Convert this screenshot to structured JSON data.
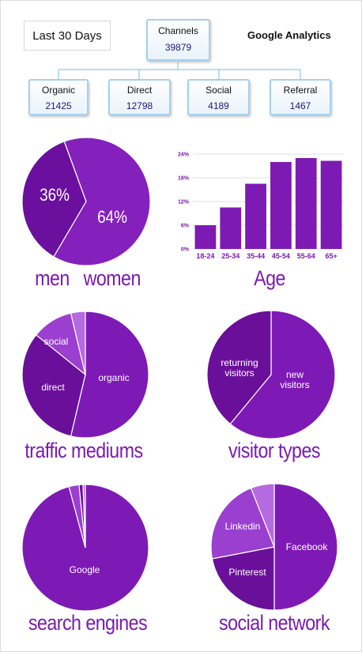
{
  "header": {
    "date_range": "Last 30 Days",
    "brand": "Google Analytics"
  },
  "channels": {
    "root": {
      "name": "Channels",
      "value": "39879"
    },
    "items": [
      {
        "name": "Organic",
        "value": "21425"
      },
      {
        "name": "Direct",
        "value": "12798"
      },
      {
        "name": "Social",
        "value": "4189"
      },
      {
        "name": "Referral",
        "value": "1467"
      }
    ]
  },
  "colors": {
    "dark": "#6a0f9c",
    "mid": "#7d1ab3",
    "light": "#9a3fd0",
    "lighter": "#b66ae0",
    "line": "#a6d0ec"
  },
  "chart_data": [
    {
      "type": "pie",
      "caption": "men   women",
      "slices": [
        {
          "label": "36%",
          "value": 36
        },
        {
          "label": "64%",
          "value": 64
        }
      ]
    },
    {
      "type": "bar",
      "caption": "Age",
      "categories": [
        "18-24",
        "25-34",
        "35-44",
        "45-54",
        "55-64",
        "65+"
      ],
      "values": [
        6.0,
        10.5,
        16.5,
        22.0,
        23.0,
        22.3
      ],
      "ylim": [
        0,
        24
      ],
      "yticks": [
        0,
        6,
        12,
        18,
        24
      ],
      "ytick_labels": [
        "0%",
        "6%",
        "12%",
        "18%",
        "24%"
      ]
    },
    {
      "type": "pie",
      "caption": "traffic mediums",
      "slices": [
        {
          "label": "organic",
          "value": 53.7
        },
        {
          "label": "direct",
          "value": 32.1
        },
        {
          "label": "social",
          "value": 10.5
        },
        {
          "label": "",
          "value": 3.7
        }
      ]
    },
    {
      "type": "pie",
      "caption": "visitor types",
      "slices": [
        {
          "label": "new visitors",
          "value": 61
        },
        {
          "label": "returning visitors",
          "value": 39
        }
      ]
    },
    {
      "type": "pie",
      "caption": "search engines",
      "slices": [
        {
          "label": "Google",
          "value": 95.8
        },
        {
          "label": "",
          "value": 2.6
        },
        {
          "label": "",
          "value": 1.0
        },
        {
          "label": "",
          "value": 0.6
        }
      ]
    },
    {
      "type": "pie",
      "caption": "social network",
      "slices": [
        {
          "label": "Facebook",
          "value": 50
        },
        {
          "label": "Pinterest",
          "value": 22
        },
        {
          "label": "Linkedin",
          "value": 22
        },
        {
          "label": "",
          "value": 6
        }
      ]
    }
  ]
}
